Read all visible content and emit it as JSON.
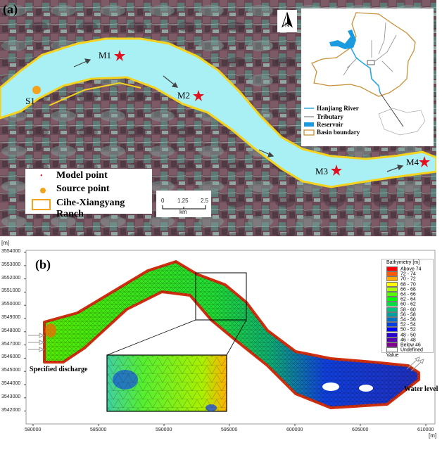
{
  "panel_a": {
    "label": "(a)",
    "points": [
      {
        "id": "M1",
        "type": "model"
      },
      {
        "id": "M2",
        "type": "model"
      },
      {
        "id": "M3",
        "type": "model"
      },
      {
        "id": "M4",
        "type": "model"
      },
      {
        "id": "S1",
        "type": "source"
      }
    ],
    "legend": {
      "model_point": "Model point",
      "source_point": "Source point",
      "ranch": "Cihe-Xiangyang Ranch"
    },
    "scale_bar": {
      "ticks": [
        "0",
        "1.25",
        "2.5"
      ],
      "unit": "km"
    },
    "north_label": "N",
    "inset_legend": {
      "river": "Hanjiang River",
      "tributary": "Tributary",
      "reservoir": "Reservoir",
      "basin": "Basin boundary"
    },
    "colors": {
      "river": "#a8f0f4",
      "boundary": "#f5d21c",
      "model_point": "#e0101e",
      "source_point": "#f2a21b",
      "hanjiang": "#29a8e8",
      "basin": "#c8913a"
    }
  },
  "panel_b": {
    "label": "(b)",
    "x_axis": {
      "ticks": [
        "580000",
        "585000",
        "590000",
        "595000",
        "600000",
        "605000",
        "610000"
      ],
      "unit": "[m]"
    },
    "y_axis": {
      "ticks": [
        "3554000",
        "3553000",
        "3552000",
        "3551000",
        "3550000",
        "3549000",
        "3548000",
        "3547000",
        "3546000",
        "3545000",
        "3544000",
        "3543000",
        "3542000"
      ],
      "unit": "[m]"
    },
    "inflow_label": "Specified discharge",
    "outflow_label": "Water level",
    "legend": {
      "title": "Bathymetry [m]",
      "items": [
        {
          "label": "Above 74",
          "color": "#ff0000"
        },
        {
          "label": "72 - 74",
          "color": "#ff5a00"
        },
        {
          "label": "70 - 72",
          "color": "#ffaa00"
        },
        {
          "label": "68 - 70",
          "color": "#ffff00"
        },
        {
          "label": "66 - 68",
          "color": "#aaff00"
        },
        {
          "label": "64 - 66",
          "color": "#55ff00"
        },
        {
          "label": "62 - 64",
          "color": "#00ff00"
        },
        {
          "label": "60 - 62",
          "color": "#00e040"
        },
        {
          "label": "58 - 60",
          "color": "#00c080"
        },
        {
          "label": "56 - 58",
          "color": "#00a0a0"
        },
        {
          "label": "54 - 56",
          "color": "#0070c8"
        },
        {
          "label": "52 - 54",
          "color": "#0040e0"
        },
        {
          "label": "50 - 52",
          "color": "#0000ff"
        },
        {
          "label": "48 - 50",
          "color": "#2a00d0"
        },
        {
          "label": "46 - 48",
          "color": "#5a00b0"
        },
        {
          "label": "Below 46",
          "color": "#800090"
        },
        {
          "label": "Undefined Value",
          "color": "#ffffff"
        }
      ]
    }
  }
}
